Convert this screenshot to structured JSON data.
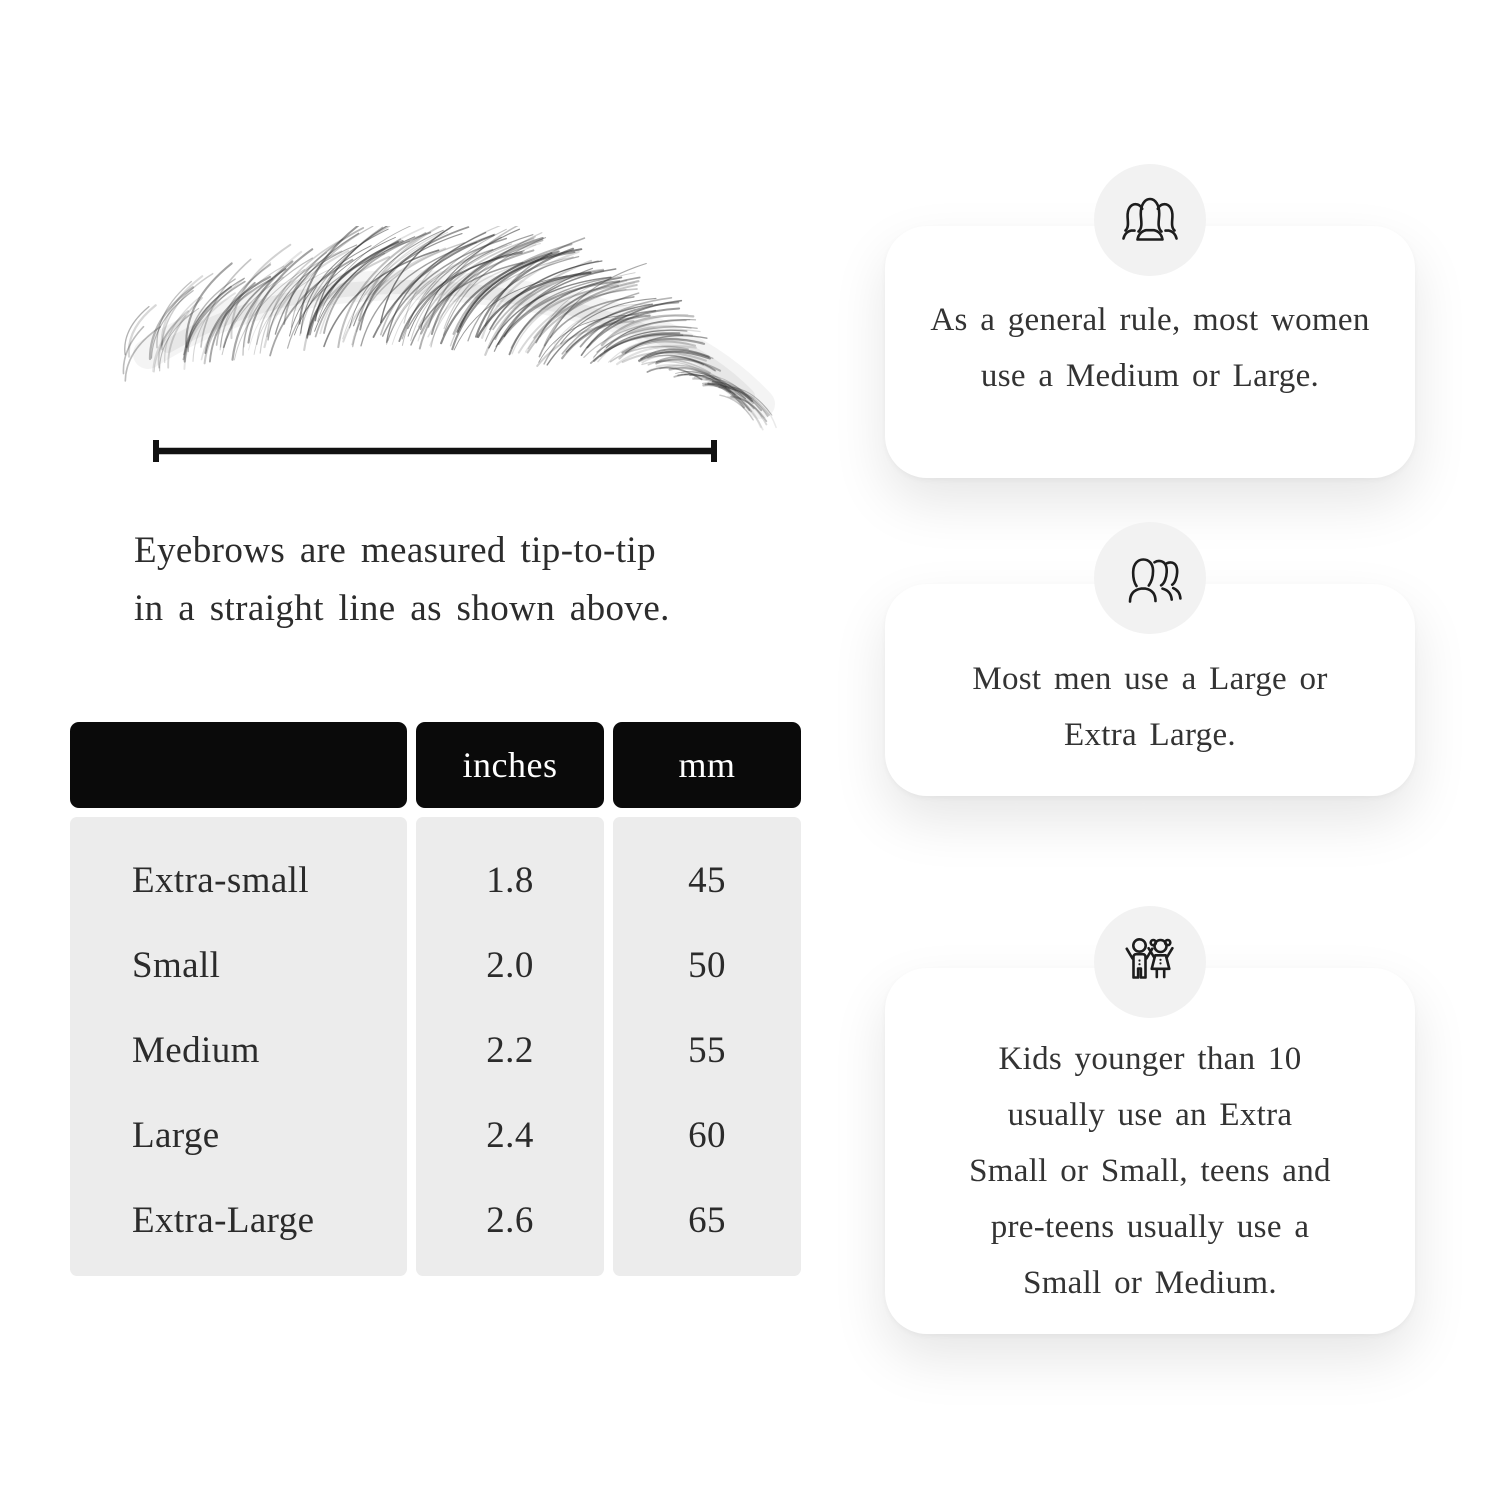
{
  "measurement": {
    "caption_line1": "Eyebrows are measured tip-to-tip",
    "caption_line2": "in a straight line as shown above."
  },
  "size_table": {
    "columns": [
      "",
      "inches",
      "mm"
    ],
    "rows": [
      {
        "label": "Extra-small",
        "inches": "1.8",
        "mm": "45"
      },
      {
        "label": "Small",
        "inches": "2.0",
        "mm": "50"
      },
      {
        "label": "Medium",
        "inches": "2.2",
        "mm": "55"
      },
      {
        "label": "Large",
        "inches": "2.4",
        "mm": "60"
      },
      {
        "label": "Extra-Large",
        "inches": "2.6",
        "mm": "65"
      }
    ]
  },
  "cards": [
    {
      "icon": "women-icon",
      "lines": [
        "As a general rule, most women",
        "use a Medium or Large."
      ]
    },
    {
      "icon": "men-icon",
      "lines": [
        "Most men use a Large or",
        "Extra Large."
      ]
    },
    {
      "icon": "kids-icon",
      "lines": [
        "Kids younger than 10",
        "usually use an Extra",
        "Small or Small, teens and",
        "pre-teens usually use a",
        "Small or Medium."
      ]
    }
  ],
  "colors": {
    "header_bg": "#0a0a0a",
    "header_text": "#ffffff",
    "body_bg": "#ececec",
    "page_bg": "#ffffff",
    "circle_bg": "#f2f2f2",
    "text": "#2c2c2c",
    "card_text": "#333333",
    "icon_stroke": "#1d1d1d",
    "line_color": "#111111"
  }
}
